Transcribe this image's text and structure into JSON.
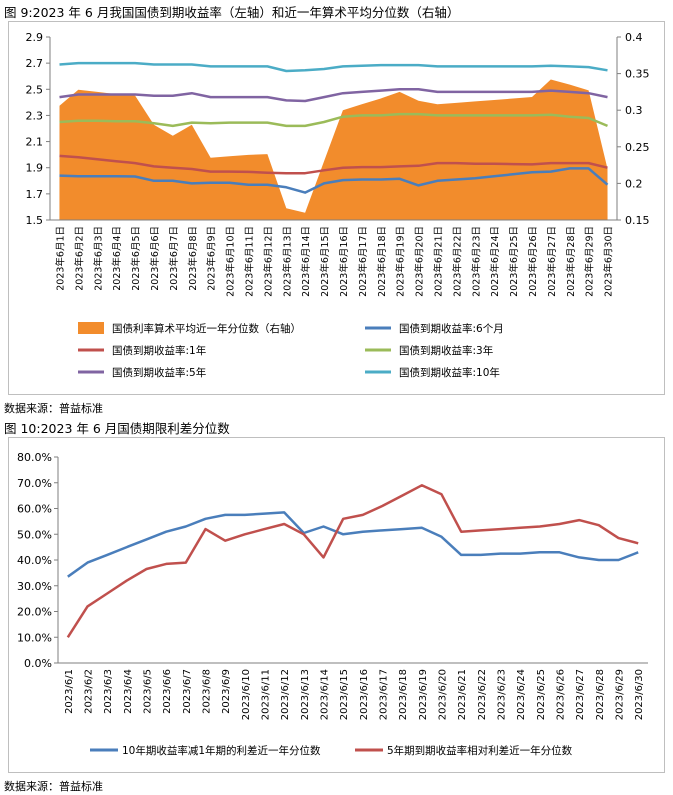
{
  "fig9": {
    "caption": "图 9:2023 年 6 月我国国债到期收益率（左轴）和近一年算术平均分位数（右轴）",
    "source": "数据来源：普益标准"
  },
  "fig10": {
    "caption": "图 10:2023 年 6 月国债期限利差分位数",
    "source": "数据来源：普益标准"
  },
  "chart_data": [
    {
      "type": "line",
      "x": [
        "2023年6月1日",
        "2023年6月2日",
        "2023年6月3日",
        "2023年6月4日",
        "2023年6月5日",
        "2023年6月6日",
        "2023年6月7日",
        "2023年6月8日",
        "2023年6月9日",
        "2023年6月10日",
        "2023年6月11日",
        "2023年6月12日",
        "2023年6月13日",
        "2023年6月14日",
        "2023年6月15日",
        "2023年6月16日",
        "2023年6月17日",
        "2023年6月18日",
        "2023年6月19日",
        "2023年6月20日",
        "2023年6月21日",
        "2023年6月22日",
        "2023年6月23日",
        "2023年6月24日",
        "2023年6月25日",
        "2023年6月26日",
        "2023年6月27日",
        "2023年6月28日",
        "2023年6月29日",
        "2023年6月30日"
      ],
      "ylim_left": [
        1.5,
        2.9
      ],
      "yticks_left": [
        "1.5",
        "1.7",
        "1.9",
        "2.1",
        "2.3",
        "2.5",
        "2.7",
        "2.9"
      ],
      "ylim_right": [
        0.15,
        0.4
      ],
      "yticks_right": [
        "0.15",
        "0.2",
        "0.25",
        "0.3",
        "0.35",
        "0.4"
      ],
      "area": {
        "name": "国债利率算术平均近一年分位数（右轴）",
        "color": "#F28C2C",
        "axis": "right",
        "values": [
          0.306,
          0.328,
          0.325,
          0.322,
          0.32,
          0.28,
          0.265,
          0.28,
          0.235,
          0.237,
          0.239,
          0.24,
          0.166,
          0.16,
          0.23,
          0.3,
          0.308,
          0.316,
          0.325,
          0.313,
          0.308,
          0.31,
          0.312,
          0.314,
          0.316,
          0.318,
          0.342,
          0.335,
          0.327,
          0.22
        ]
      },
      "series": [
        {
          "name": "国债到期收益率:6个月",
          "color": "#4A7EBB",
          "axis": "left",
          "values": [
            1.84,
            1.835,
            1.835,
            1.835,
            1.833,
            1.8,
            1.8,
            1.78,
            1.785,
            1.785,
            1.77,
            1.77,
            1.75,
            1.71,
            1.78,
            1.805,
            1.81,
            1.81,
            1.815,
            1.765,
            1.8,
            1.81,
            1.82,
            1.835,
            1.85,
            1.865,
            1.87,
            1.895,
            1.895,
            1.77
          ]
        },
        {
          "name": "国债到期收益率:1年",
          "color": "#C0504D",
          "axis": "left",
          "values": [
            1.99,
            1.98,
            1.965,
            1.95,
            1.935,
            1.91,
            1.9,
            1.89,
            1.87,
            1.87,
            1.868,
            1.862,
            1.858,
            1.858,
            1.88,
            1.9,
            1.905,
            1.905,
            1.91,
            1.915,
            1.935,
            1.935,
            1.93,
            1.93,
            1.928,
            1.925,
            1.935,
            1.935,
            1.935,
            1.9
          ]
        },
        {
          "name": "国债到期收益率:3年",
          "color": "#9BBB59",
          "axis": "left",
          "values": [
            2.25,
            2.26,
            2.26,
            2.255,
            2.255,
            2.24,
            2.22,
            2.245,
            2.24,
            2.245,
            2.245,
            2.245,
            2.22,
            2.22,
            2.25,
            2.29,
            2.3,
            2.3,
            2.31,
            2.31,
            2.3,
            2.3,
            2.3,
            2.3,
            2.3,
            2.3,
            2.305,
            2.29,
            2.28,
            2.22
          ]
        },
        {
          "name": "国债到期收益率:5年",
          "color": "#8064A2",
          "axis": "left",
          "values": [
            2.44,
            2.46,
            2.46,
            2.46,
            2.46,
            2.45,
            2.45,
            2.47,
            2.44,
            2.44,
            2.44,
            2.44,
            2.415,
            2.41,
            2.44,
            2.47,
            2.48,
            2.49,
            2.5,
            2.5,
            2.48,
            2.48,
            2.48,
            2.48,
            2.48,
            2.48,
            2.49,
            2.48,
            2.47,
            2.44
          ]
        },
        {
          "name": "国债到期收益率:10年",
          "color": "#4BACC6",
          "axis": "left",
          "values": [
            2.69,
            2.7,
            2.7,
            2.7,
            2.7,
            2.69,
            2.69,
            2.69,
            2.675,
            2.675,
            2.675,
            2.675,
            2.64,
            2.645,
            2.655,
            2.675,
            2.68,
            2.685,
            2.685,
            2.685,
            2.675,
            2.675,
            2.675,
            2.675,
            2.675,
            2.675,
            2.68,
            2.675,
            2.67,
            2.645
          ]
        }
      ]
    },
    {
      "type": "line",
      "x": [
        "2023/6/1",
        "2023/6/2",
        "2023/6/3",
        "2023/6/4",
        "2023/6/5",
        "2023/6/6",
        "2023/6/7",
        "2023/6/8",
        "2023/6/9",
        "2023/6/10",
        "2023/6/11",
        "2023/6/12",
        "2023/6/13",
        "2023/6/14",
        "2023/6/15",
        "2023/6/16",
        "2023/6/17",
        "2023/6/18",
        "2023/6/19",
        "2023/6/20",
        "2023/6/21",
        "2023/6/22",
        "2023/6/23",
        "2023/6/24",
        "2023/6/25",
        "2023/6/26",
        "2023/6/27",
        "2023/6/28",
        "2023/6/29",
        "2023/6/30"
      ],
      "ylim": [
        0,
        80
      ],
      "yticks": [
        "0.0%",
        "10.0%",
        "20.0%",
        "30.0%",
        "40.0%",
        "50.0%",
        "60.0%",
        "70.0%",
        "80.0%"
      ],
      "series": [
        {
          "name": "10年期收益率减1年期的利差近一年分位数",
          "color": "#4A7EBB",
          "values": [
            33.5,
            39,
            42,
            45,
            48,
            51,
            53,
            56,
            57.5,
            57.5,
            58,
            58.5,
            50.5,
            53,
            50,
            51,
            51.5,
            52,
            52.5,
            49,
            42,
            42,
            42.5,
            42.5,
            43,
            43,
            41,
            40,
            40,
            43
          ]
        },
        {
          "name": "5年期到期收益率相对利差近一年分位数",
          "color": "#C0504D",
          "values": [
            10,
            22,
            27,
            32,
            36.5,
            38.5,
            39,
            52,
            47.5,
            50,
            52,
            54,
            50,
            41,
            56,
            57.5,
            61,
            65,
            69,
            65.5,
            51,
            51.5,
            52,
            52.5,
            53,
            54,
            55.5,
            53.5,
            48.5,
            46.5
          ]
        }
      ]
    }
  ]
}
